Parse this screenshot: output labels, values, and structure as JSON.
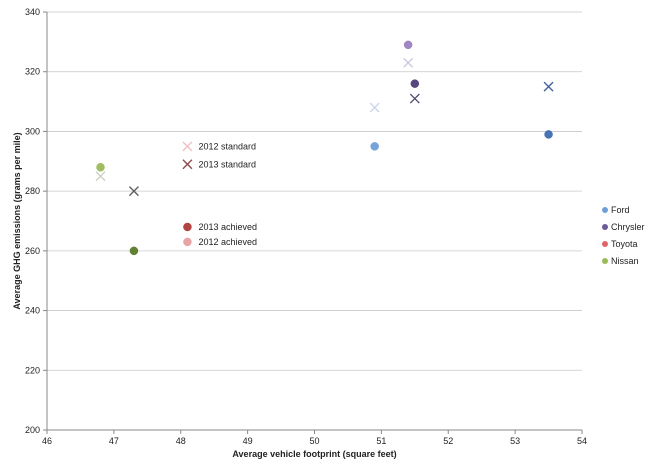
{
  "chart_data": {
    "type": "scatter",
    "title": "",
    "xlabel": "Average vehicle footprint (square feet)",
    "ylabel": "Average GHG emissions (grams per mile)",
    "xlim": [
      46,
      54
    ],
    "ylim": [
      200,
      340
    ],
    "x_ticks": [
      46,
      47,
      48,
      49,
      50,
      51,
      52,
      53,
      54
    ],
    "y_ticks": [
      200,
      220,
      240,
      260,
      280,
      300,
      320,
      340
    ],
    "grid": "horizontal major",
    "series": [
      {
        "name": "Ford",
        "color": "#6f9fd8",
        "color_2013": "#3d6ab0",
        "color_std_2012": "#c6d4ea",
        "color_std_2013": "#3e5f9c",
        "achieved_2012": [
          [
            50.9,
            295
          ]
        ],
        "achieved_2013": [
          [
            53.5,
            299
          ]
        ],
        "standard_2012": [
          [
            50.9,
            308
          ]
        ],
        "standard_2013": [
          [
            53.5,
            315
          ]
        ]
      },
      {
        "name": "Chrysler",
        "color": "#9b7fc2",
        "color_2013": "#4e3d7a",
        "color_std_2012": "#cfc6de",
        "color_std_2013": "#4f4870",
        "achieved_2012": [
          [
            51.4,
            329
          ]
        ],
        "achieved_2013": [
          [
            51.5,
            316
          ]
        ],
        "standard_2012": [
          [
            51.4,
            323
          ]
        ],
        "standard_2013": [
          [
            51.5,
            311
          ]
        ]
      },
      {
        "name": "Toyota",
        "color": "#e06666",
        "color_2013": "#b03a3a",
        "color_std_2012": "#f0c0c0",
        "color_std_2013": "#8a4a4a",
        "achieved_2012": [],
        "achieved_2013": [],
        "standard_2012": [],
        "standard_2013": []
      },
      {
        "name": "Nissan",
        "color": "#9bbb59",
        "color_2013": "#5a7a2a",
        "color_std_2012": "#c8cfbe",
        "color_std_2013": "#5c5c5c",
        "achieved_2012": [
          [
            46.8,
            288
          ]
        ],
        "achieved_2013": [
          [
            47.3,
            260
          ]
        ],
        "standard_2012": [
          [
            46.8,
            285
          ]
        ],
        "standard_2013": [
          [
            47.3,
            280
          ]
        ]
      }
    ],
    "annotations": [
      {
        "label": "2012 standard",
        "marker": "x",
        "color": "#f0c0c0",
        "x": 48.1,
        "y": 295
      },
      {
        "label": "2013 standard",
        "marker": "x",
        "color": "#8a4a4a",
        "x": 48.1,
        "y": 289
      },
      {
        "label": "2013 achieved",
        "marker": "dot",
        "color": "#b03a3a",
        "x": 48.1,
        "y": 268
      },
      {
        "label": "2012 achieved",
        "marker": "dot",
        "color": "#e8a0a0",
        "x": 48.1,
        "y": 263
      }
    ],
    "legend": {
      "placement": "right",
      "entries": [
        {
          "label": "Ford",
          "color": "#6f9fd8"
        },
        {
          "label": "Chrysler",
          "color": "#6a5b99"
        },
        {
          "label": "Toyota",
          "color": "#e06666"
        },
        {
          "label": "Nissan",
          "color": "#9bbb59"
        }
      ]
    }
  }
}
